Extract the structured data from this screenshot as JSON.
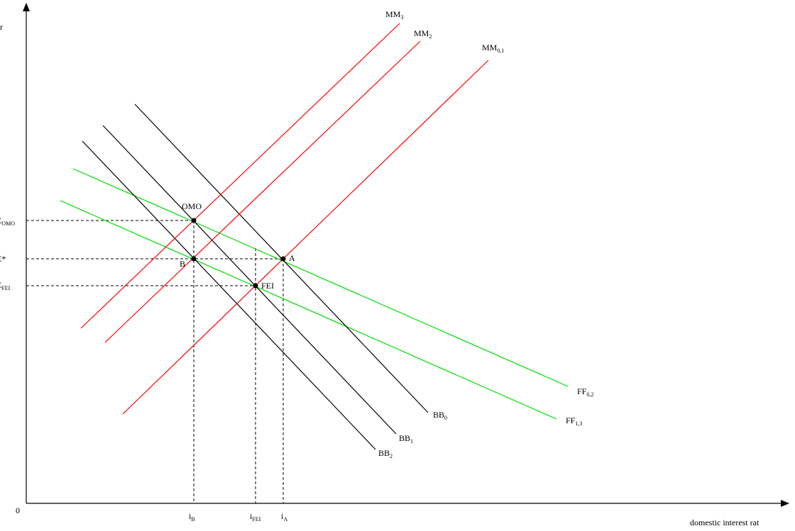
{
  "axes": {
    "origin_label": "0",
    "x_label": "domestic interest rat",
    "y_label": "r"
  },
  "curves": {
    "mm3": {
      "base": "MM",
      "sub": "3"
    },
    "mm2": {
      "base": "MM",
      "sub": "2"
    },
    "mm01": {
      "base": "MM",
      "sub": "0,1"
    },
    "bb0": {
      "base": "BB",
      "sub": "0"
    },
    "bb1": {
      "base": "BB",
      "sub": "1"
    },
    "bb2": {
      "base": "BB",
      "sub": "2"
    },
    "ff02": {
      "base": "FF",
      "sub": "0,2"
    },
    "ff13": {
      "base": "FF",
      "sub": "1,3"
    }
  },
  "points": {
    "omo": "OMO",
    "a": "A",
    "b": "B",
    "fei": "FEI"
  },
  "y_ticks": {
    "omo": {
      "base": "E",
      "sub": "OMO"
    },
    "star": {
      "base": "E*",
      "sub": ""
    },
    "fei": {
      "base": "E",
      "sub": "FEI"
    }
  },
  "x_ticks": {
    "b": {
      "base": "i",
      "sub": "B"
    },
    "fei": {
      "base": "i",
      "sub": "FEI"
    },
    "a": {
      "base": "i",
      "sub": "A"
    }
  },
  "colors": {
    "mm": "#ff0000",
    "bb": "#000000",
    "ff": "#00dd00"
  }
}
